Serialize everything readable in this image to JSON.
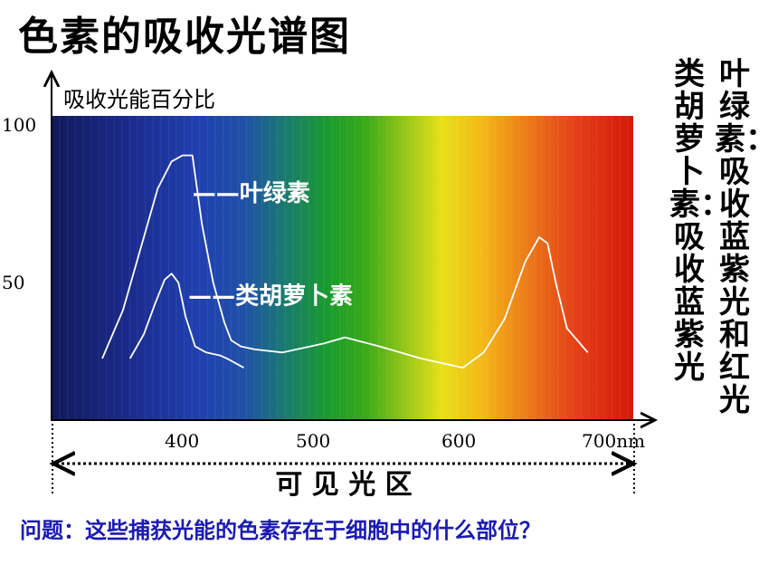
{
  "title": "色素的吸收光谱图",
  "question": "问题：这些捕获光能的色素存在于细胞中的什么部位？",
  "notes": {
    "chlorophyll": "叶绿素：吸收蓝紫光和红光",
    "carotenoid": "类胡萝卜素：吸收蓝紫光"
  },
  "chart_data": {
    "type": "line",
    "title": "色素的吸收光谱图",
    "ylabel": "吸收光能百分比",
    "xlabel": "可 见 光 区",
    "x_unit": "nm",
    "x_ticks": [
      "400",
      "500",
      "600",
      "700"
    ],
    "y_ticks": [
      "100",
      "50"
    ],
    "xlim": [
      320,
      720
    ],
    "ylim": [
      0,
      100
    ],
    "grid": false,
    "legend": "inline labels",
    "background": "visible spectrum gradient",
    "series": [
      {
        "name": "叶绿素",
        "label_text": "——叶绿素",
        "label_at": [
          405,
          72
        ],
        "x": [
          340,
          355,
          370,
          380,
          390,
          398,
          405,
          412,
          420,
          428,
          433,
          440,
          450,
          470,
          500,
          515,
          540,
          570,
          590,
          600,
          615,
          630,
          645,
          655,
          661,
          667,
          675,
          690
        ],
        "y": [
          20,
          36,
          60,
          76,
          85,
          87,
          87,
          64,
          45,
          32,
          26,
          24,
          23,
          22,
          25,
          27,
          24,
          20,
          18,
          17,
          22,
          33,
          52,
          60,
          58,
          45,
          30,
          22
        ],
        "color": "#ffffff"
      },
      {
        "name": "类胡萝卜素",
        "label_text": "——类胡萝卜素",
        "label_at": [
          402,
          38
        ],
        "x": [
          360,
          370,
          378,
          385,
          390,
          395,
          400,
          407,
          415,
          425,
          430,
          442
        ],
        "y": [
          20,
          28,
          38,
          46,
          48,
          45,
          34,
          24,
          22,
          21,
          20,
          17
        ],
        "color": "#ffffff"
      }
    ]
  }
}
